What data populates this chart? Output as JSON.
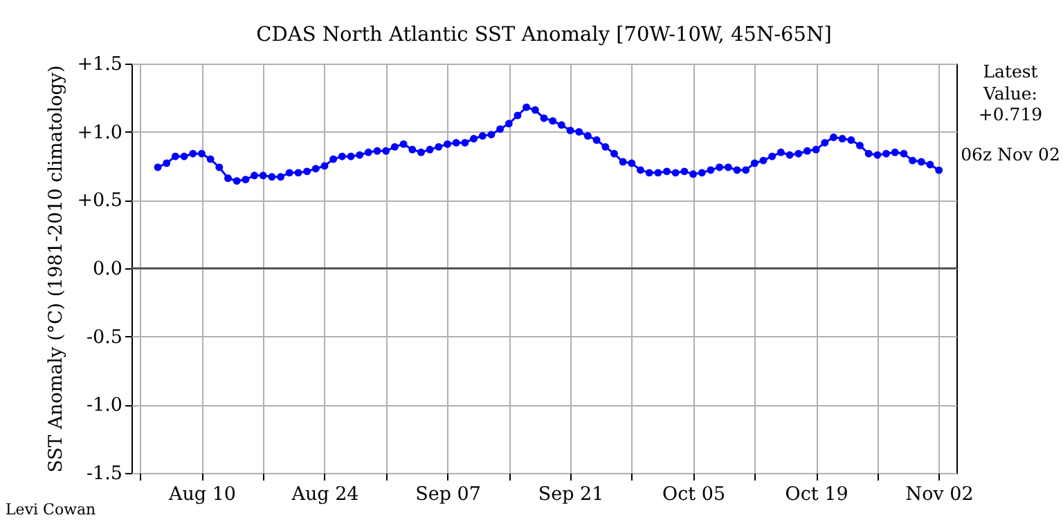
{
  "chart_data": {
    "type": "line",
    "title": "CDAS North Atlantic SST Anomaly [70W-10W, 45N-65N]",
    "ylabel": "SST Anomaly (°C) (1981-2010 climatology)",
    "x": [
      "--08-05",
      "--08-06",
      "--08-07",
      "--08-08",
      "--08-09",
      "--08-10",
      "--08-11",
      "--08-12",
      "--08-13",
      "--08-14",
      "--08-15",
      "--08-16",
      "--08-17",
      "--08-18",
      "--08-19",
      "--08-20",
      "--08-21",
      "--08-22",
      "--08-23",
      "--08-24",
      "--08-25",
      "--08-26",
      "--08-27",
      "--08-28",
      "--08-29",
      "--08-30",
      "--08-31",
      "--09-01",
      "--09-02",
      "--09-03",
      "--09-04",
      "--09-05",
      "--09-06",
      "--09-07",
      "--09-08",
      "--09-09",
      "--09-10",
      "--09-11",
      "--09-12",
      "--09-13",
      "--09-14",
      "--09-15",
      "--09-16",
      "--09-17",
      "--09-18",
      "--09-19",
      "--09-20",
      "--09-21",
      "--09-22",
      "--09-23",
      "--09-24",
      "--09-25",
      "--09-26",
      "--09-27",
      "--09-28",
      "--09-29",
      "--09-30",
      "--10-01",
      "--10-02",
      "--10-03",
      "--10-04",
      "--10-05",
      "--10-06",
      "--10-07",
      "--10-08",
      "--10-09",
      "--10-10",
      "--10-11",
      "--10-12",
      "--10-13",
      "--10-14",
      "--10-15",
      "--10-16",
      "--10-17",
      "--10-18",
      "--10-19",
      "--10-20",
      "--10-21",
      "--10-22",
      "--10-23",
      "--10-24",
      "--10-25",
      "--10-26",
      "--10-27",
      "--10-28",
      "--10-29",
      "--10-30",
      "--10-31",
      "--11-01",
      "--11-02"
    ],
    "series": [
      {
        "color": "#0000ff",
        "values": [
          0.74,
          0.77,
          0.82,
          0.82,
          0.84,
          0.84,
          0.8,
          0.74,
          0.66,
          0.64,
          0.65,
          0.68,
          0.68,
          0.67,
          0.67,
          0.7,
          0.7,
          0.71,
          0.73,
          0.75,
          0.8,
          0.82,
          0.82,
          0.83,
          0.85,
          0.86,
          0.86,
          0.89,
          0.91,
          0.87,
          0.85,
          0.87,
          0.89,
          0.91,
          0.92,
          0.92,
          0.95,
          0.97,
          0.98,
          1.02,
          1.06,
          1.12,
          1.18,
          1.16,
          1.1,
          1.08,
          1.05,
          1.01,
          1.0,
          0.97,
          0.94,
          0.89,
          0.84,
          0.78,
          0.77,
          0.72,
          0.7,
          0.7,
          0.71,
          0.7,
          0.71,
          0.69,
          0.7,
          0.72,
          0.74,
          0.74,
          0.72,
          0.72,
          0.77,
          0.79,
          0.82,
          0.85,
          0.83,
          0.84,
          0.86,
          0.87,
          0.92,
          0.96,
          0.95,
          0.94,
          0.9,
          0.84,
          0.83,
          0.84,
          0.85,
          0.84,
          0.79,
          0.78,
          0.76,
          0.719
        ]
      }
    ],
    "xlim": [
      "--08-02",
      "--11-04"
    ],
    "xticks": [
      {
        "value": "--08-03",
        "label": null
      },
      {
        "value": "--08-10",
        "label": "Aug 10"
      },
      {
        "value": "--08-17",
        "label": null
      },
      {
        "value": "--08-24",
        "label": "Aug 24"
      },
      {
        "value": "--08-31",
        "label": null
      },
      {
        "value": "--09-07",
        "label": "Sep 07"
      },
      {
        "value": "--09-14",
        "label": null
      },
      {
        "value": "--09-21",
        "label": "Sep 21"
      },
      {
        "value": "--09-28",
        "label": null
      },
      {
        "value": "--10-05",
        "label": "Oct 05"
      },
      {
        "value": "--10-12",
        "label": null
      },
      {
        "value": "--10-19",
        "label": "Oct 19"
      },
      {
        "value": "--10-26",
        "label": null
      },
      {
        "value": "--11-02",
        "label": "Nov 02"
      }
    ],
    "ylim": [
      -1.5,
      1.5
    ],
    "yticks": [
      {
        "value": -1.5,
        "label": "-1.5"
      },
      {
        "value": -1.0,
        "label": "-1.0"
      },
      {
        "value": -0.5,
        "label": "-0.5"
      },
      {
        "value": 0,
        "label": "0.0"
      },
      {
        "value": 0.5,
        "label": "+0.5"
      },
      {
        "value": 1.0,
        "label": "+1.0"
      },
      {
        "value": 1.5,
        "label": "+1.5"
      }
    ],
    "ref_lines": [
      {
        "axis": "y",
        "value": 0,
        "color": "#444444"
      }
    ],
    "grid": true,
    "marker": "circle",
    "line_style": "solid",
    "annotations": [
      "Latest Value: +0.719",
      "06z Nov 02",
      "Levi Cowan"
    ]
  }
}
